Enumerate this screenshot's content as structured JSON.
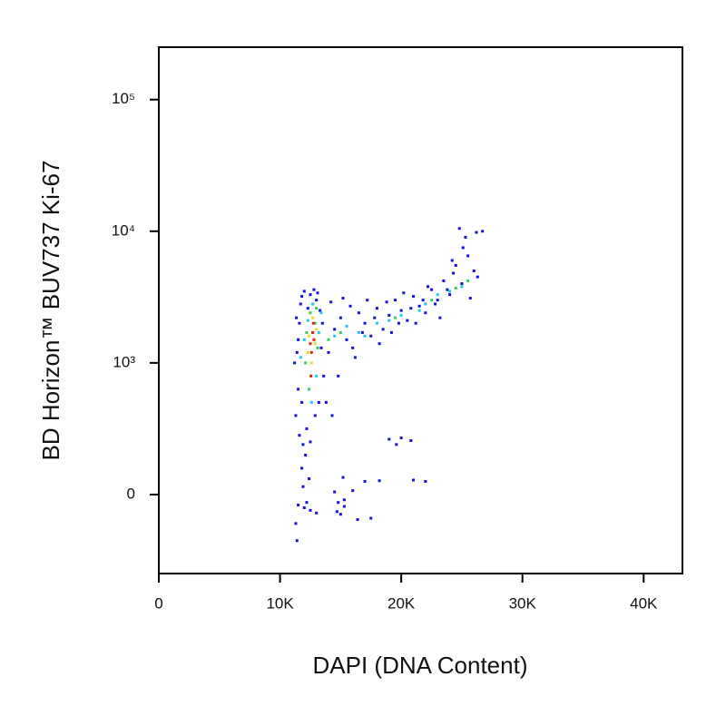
{
  "chart_data": {
    "type": "scatter",
    "x_label": "DAPI (DNA Content)",
    "y_label": "BD Horizon™ BUV737 Ki-67",
    "xlim": [
      0,
      43200
    ],
    "ylim": [
      -600,
      250000
    ],
    "y_scale": "symlog",
    "y_linthresh": 1000,
    "grid": false,
    "xticks": [
      {
        "value": 0,
        "label": "0"
      },
      {
        "value": 10000,
        "label": "10K"
      },
      {
        "value": 20000,
        "label": "20K"
      },
      {
        "value": 30000,
        "label": "30K"
      },
      {
        "value": 40000,
        "label": "40K"
      }
    ],
    "yticks": [
      {
        "value": 0,
        "label": "0"
      },
      {
        "value": 1000,
        "label": "10³"
      },
      {
        "value": 10000,
        "label": "10⁴"
      },
      {
        "value": 100000,
        "label": "10⁵"
      }
    ],
    "series": [
      {
        "color": "#1010e0",
        "x": [
          11300,
          11500,
          11400,
          11600,
          11700,
          11500,
          11800,
          12000,
          11600,
          11900,
          12100,
          11800,
          12200,
          12500,
          12800,
          13100,
          13300,
          13500,
          13400,
          13600,
          13200,
          12900,
          11200,
          11350,
          12300,
          13000,
          14000,
          14500,
          15000,
          15500,
          16000,
          16500,
          17000,
          17500,
          18000,
          18500,
          19000,
          19500,
          20000,
          20500,
          21000,
          21500,
          22000,
          22500,
          23000,
          23500,
          24000,
          24500,
          25000,
          25500,
          26000,
          24800,
          25300,
          26200,
          26700,
          24200,
          14200,
          15200,
          16200,
          17200,
          18200,
          19200,
          20200,
          21200,
          22200,
          23200,
          24300,
          25700,
          26300,
          14800,
          13800,
          15800,
          16800,
          17800,
          18800,
          19800,
          20800,
          21800,
          22800,
          23800,
          25100,
          14300,
          12500,
          19000,
          20000,
          20800,
          19600,
          17000,
          18200,
          21000,
          22000,
          15200,
          12400,
          11900,
          11500,
          11300,
          12000,
          12500,
          13000,
          12200,
          14800,
          15000,
          15300,
          14500,
          16000,
          17500,
          16400,
          11400,
          11800,
          15300,
          14700
        ],
        "values": [
          600,
          800,
          1200,
          2000,
          2800,
          1500,
          3200,
          3500,
          450,
          380,
          300,
          700,
          500,
          3300,
          3600,
          3400,
          2500,
          2000,
          1300,
          900,
          700,
          600,
          1000,
          2200,
          2600,
          3000,
          1200,
          1800,
          2200,
          1500,
          1300,
          2400,
          2000,
          1600,
          2600,
          1800,
          2300,
          3000,
          2500,
          2100,
          3200,
          2700,
          2400,
          3600,
          3000,
          4200,
          3300,
          5500,
          4000,
          6500,
          5000,
          10500,
          9000,
          9800,
          10000,
          6000,
          2900,
          3100,
          1100,
          3000,
          1400,
          1700,
          3400,
          2000,
          3800,
          2200,
          4800,
          3100,
          4500,
          900,
          700,
          2700,
          1700,
          2200,
          2900,
          2000,
          2600,
          3000,
          2800,
          3600,
          7500,
          600,
          400,
          420,
          430,
          410,
          380,
          100,
          105,
          110,
          100,
          130,
          120,
          60,
          -80,
          -220,
          -100,
          -120,
          -140,
          -60,
          -60,
          -150,
          -90,
          20,
          30,
          -180,
          -190,
          -350,
          200,
          -40,
          -130
        ]
      },
      {
        "color": "#20c8e8",
        "x": [
          12000,
          12300,
          12700,
          13200,
          13000,
          14500,
          15500,
          16500,
          18000,
          19000,
          20000,
          21500,
          23000,
          24000,
          25000,
          11700,
          12600,
          13400,
          17000,
          22000
        ],
        "values": [
          1500,
          2100,
          2800,
          1700,
          900,
          1600,
          1900,
          1700,
          2000,
          2100,
          2300,
          2500,
          3300,
          3500,
          3800,
          1100,
          700,
          2400,
          1600,
          2800
        ]
      },
      {
        "color": "#30d060",
        "x": [
          12200,
          12500,
          12900,
          13100,
          12100,
          12400,
          13000,
          14000,
          15000,
          19500,
          22500,
          24500,
          25500
        ],
        "values": [
          1700,
          2400,
          2000,
          1300,
          1000,
          800,
          2600,
          1500,
          1700,
          2200,
          3000,
          3700,
          4200
        ]
      },
      {
        "color": "#e8e020",
        "x": [
          12400,
          12700,
          12600,
          12900,
          12300,
          13000
        ],
        "values": [
          1600,
          2200,
          1000,
          1400,
          1200,
          1800
        ]
      },
      {
        "color": "#e82010",
        "x": [
          12500,
          12700,
          12600,
          12800,
          12750,
          12550
        ],
        "values": [
          1400,
          1700,
          1200,
          1500,
          2000,
          900
        ]
      }
    ]
  }
}
